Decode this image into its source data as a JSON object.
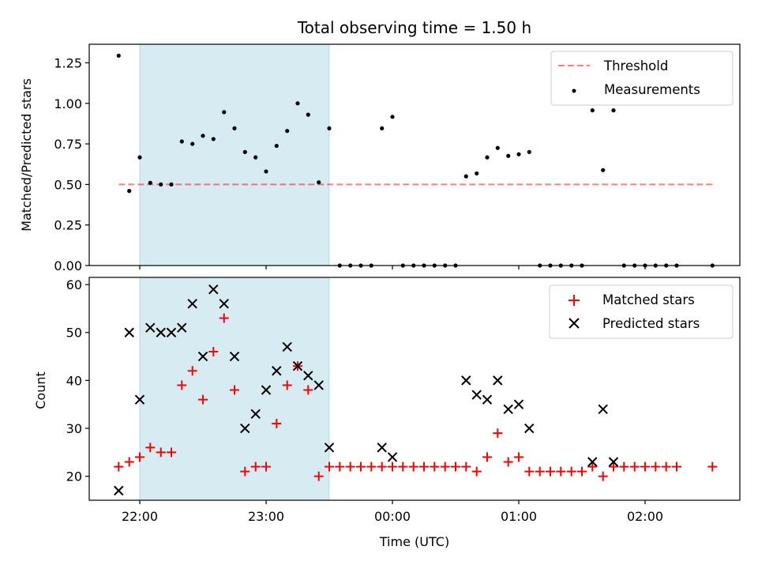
{
  "chart_data": [
    {
      "type": "scatter",
      "title": "Total observing time = 1.50 h",
      "ylabel": "Matched/Predicted stars",
      "ylim": [
        0,
        1.3644
      ],
      "yticks": [
        "0.00",
        "0.25",
        "0.50",
        "0.75",
        "1.00",
        "1.25"
      ],
      "ytick_values": [
        0,
        0.25,
        0.5,
        0.75,
        1.0,
        1.25
      ],
      "xlim_hours": [
        21.6,
        26.75
      ],
      "grid": false,
      "legend_position": "top-right",
      "shaded_span_hours": [
        22.0,
        23.5
      ],
      "shaded_color": "#add8e6",
      "threshold": {
        "name": "Threshold",
        "value": 0.5,
        "x_range_hours": [
          21.833,
          26.533
        ],
        "color": "#ff0000",
        "style": "dashed"
      },
      "series": [
        {
          "name": "Measurements",
          "color": "#000000",
          "x_hours": [
            21.833,
            21.917,
            22.0,
            22.083,
            22.167,
            22.25,
            22.333,
            22.417,
            22.5,
            22.583,
            22.667,
            22.75,
            22.833,
            22.917,
            23.0,
            23.083,
            23.167,
            23.25,
            23.333,
            23.417,
            23.5,
            23.583,
            23.667,
            23.75,
            23.833,
            23.917,
            24.0,
            24.083,
            24.167,
            24.25,
            24.333,
            24.417,
            24.5,
            24.583,
            24.667,
            24.75,
            24.833,
            24.917,
            25.0,
            25.083,
            25.167,
            25.25,
            25.333,
            25.417,
            25.5,
            25.583,
            25.667,
            25.75,
            25.833,
            25.917,
            26.0,
            26.083,
            26.167,
            26.25,
            26.533
          ],
          "values": [
            1.294,
            0.46,
            0.667,
            0.51,
            0.5,
            0.5,
            0.765,
            0.75,
            0.8,
            0.78,
            0.946,
            0.846,
            0.7,
            0.667,
            0.58,
            0.738,
            0.83,
            1.0,
            0.93,
            0.513,
            0.846,
            0.0,
            0.0,
            0.0,
            0.0,
            0.846,
            0.917,
            0.0,
            0.0,
            0.0,
            0.0,
            0.0,
            0.0,
            0.55,
            0.568,
            0.667,
            0.725,
            0.676,
            0.686,
            0.7,
            0.0,
            0.0,
            0.0,
            0.0,
            0.0,
            0.957,
            0.588,
            0.957,
            0.0,
            0.0,
            0.0,
            0.0,
            0.0,
            0.0,
            0.0
          ]
        }
      ]
    },
    {
      "type": "scatter",
      "xlabel": "Time (UTC)",
      "ylabel": "Count",
      "ylim": [
        15,
        61.5
      ],
      "yticks": [
        "20",
        "30",
        "40",
        "50",
        "60"
      ],
      "ytick_values": [
        20,
        30,
        40,
        50,
        60
      ],
      "xlim_hours": [
        21.6,
        26.75
      ],
      "xticks": [
        "22:00",
        "23:00",
        "00:00",
        "01:00",
        "02:00"
      ],
      "xtick_hours": [
        22,
        23,
        24,
        25,
        26
      ],
      "grid": false,
      "legend_position": "top-right",
      "shaded_span_hours": [
        22.0,
        23.5
      ],
      "shaded_color": "#add8e6",
      "series": [
        {
          "name": "Matched stars",
          "marker": "plus",
          "color": "#ff0000",
          "x_hours": [
            21.833,
            21.917,
            22.0,
            22.083,
            22.167,
            22.25,
            22.333,
            22.417,
            22.5,
            22.583,
            22.667,
            22.75,
            22.833,
            22.917,
            23.0,
            23.083,
            23.167,
            23.25,
            23.333,
            23.417,
            23.5,
            23.583,
            23.667,
            23.75,
            23.833,
            23.917,
            24.0,
            24.083,
            24.167,
            24.25,
            24.333,
            24.417,
            24.5,
            24.583,
            24.667,
            24.75,
            24.833,
            24.917,
            25.0,
            25.083,
            25.167,
            25.25,
            25.333,
            25.417,
            25.5,
            25.583,
            25.667,
            25.75,
            25.833,
            25.917,
            26.0,
            26.083,
            26.167,
            26.25,
            26.533
          ],
          "values": [
            22,
            23,
            24,
            26,
            25,
            25,
            39,
            42,
            36,
            46,
            53,
            38,
            21,
            22,
            22,
            31,
            39,
            43,
            38,
            20,
            22,
            22,
            22,
            22,
            22,
            22,
            22,
            22,
            22,
            22,
            22,
            22,
            22,
            22,
            21,
            24,
            29,
            23,
            24,
            21,
            21,
            21,
            21,
            21,
            21,
            22,
            20,
            22,
            22,
            22,
            22,
            22,
            22,
            22,
            22
          ]
        },
        {
          "name": "Predicted stars",
          "marker": "x",
          "color": "#000000",
          "x_hours": [
            21.833,
            21.917,
            22.0,
            22.083,
            22.167,
            22.25,
            22.333,
            22.417,
            22.5,
            22.583,
            22.667,
            22.75,
            22.833,
            22.917,
            23.0,
            23.083,
            23.167,
            23.25,
            23.333,
            23.417,
            23.5,
            23.917,
            24.0,
            24.583,
            24.667,
            24.75,
            24.833,
            24.917,
            25.0,
            25.083,
            25.583,
            25.667,
            25.75
          ],
          "values": [
            17,
            50,
            36,
            51,
            50,
            50,
            51,
            56,
            45,
            59,
            56,
            45,
            30,
            33,
            38,
            42,
            47,
            43,
            41,
            39,
            26,
            26,
            24,
            40,
            37,
            36,
            40,
            34,
            35,
            30,
            23,
            34,
            23
          ]
        }
      ]
    }
  ]
}
